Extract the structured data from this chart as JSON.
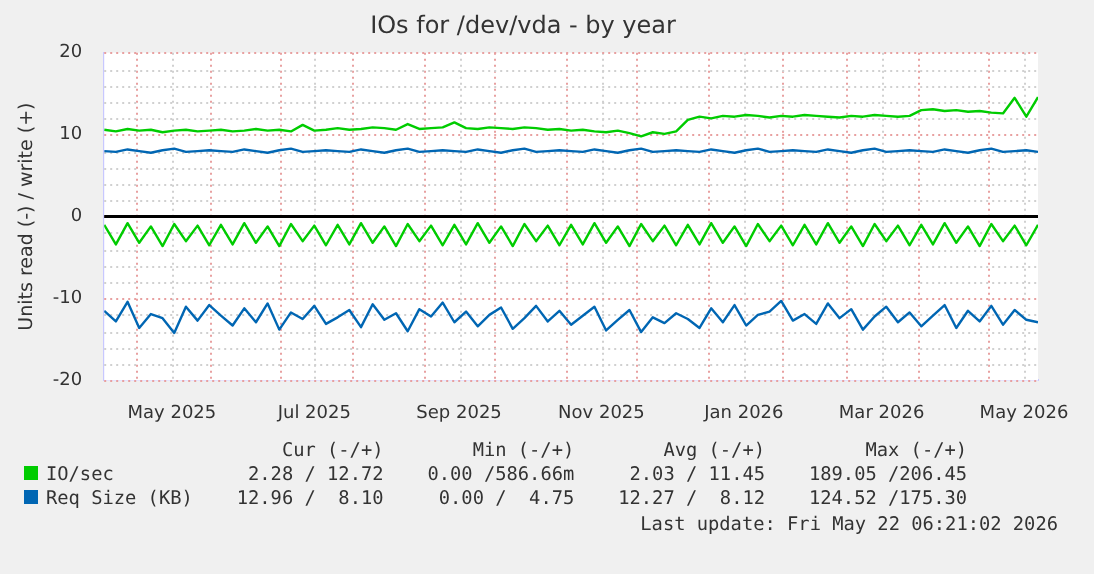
{
  "chart_data": {
    "type": "line",
    "title": "IOs for /dev/vda - by year",
    "ylabel": "Units read (-) / write (+)",
    "x": [
      "2025-04-17",
      "2025-04-22",
      "2025-04-27",
      "2025-05-02",
      "2025-05-07",
      "2025-05-12",
      "2025-05-17",
      "2025-05-22",
      "2025-05-27",
      "2025-06-01",
      "2025-06-06",
      "2025-06-11",
      "2025-06-16",
      "2025-06-21",
      "2025-06-26",
      "2025-07-01",
      "2025-07-06",
      "2025-07-11",
      "2025-07-16",
      "2025-07-21",
      "2025-07-26",
      "2025-07-31",
      "2025-08-05",
      "2025-08-10",
      "2025-08-15",
      "2025-08-20",
      "2025-08-25",
      "2025-08-30",
      "2025-09-04",
      "2025-09-09",
      "2025-09-14",
      "2025-09-19",
      "2025-09-24",
      "2025-09-29",
      "2025-10-04",
      "2025-10-09",
      "2025-10-14",
      "2025-10-19",
      "2025-10-24",
      "2025-10-29",
      "2025-11-03",
      "2025-11-08",
      "2025-11-13",
      "2025-11-18",
      "2025-11-23",
      "2025-11-28",
      "2025-12-03",
      "2025-12-08",
      "2025-12-13",
      "2025-12-18",
      "2025-12-23",
      "2025-12-28",
      "2026-01-02",
      "2026-01-07",
      "2026-01-12",
      "2026-01-17",
      "2026-01-22",
      "2026-01-27",
      "2026-02-01",
      "2026-02-06",
      "2026-02-11",
      "2026-02-16",
      "2026-02-21",
      "2026-02-26",
      "2026-03-03",
      "2026-03-08",
      "2026-03-13",
      "2026-03-18",
      "2026-03-23",
      "2026-03-28",
      "2026-04-02",
      "2026-04-07",
      "2026-04-12",
      "2026-04-17",
      "2026-04-22",
      "2026-04-27",
      "2026-05-02",
      "2026-05-07",
      "2026-05-12",
      "2026-05-17",
      "2026-05-22"
    ],
    "series": [
      {
        "name": "IO/sec",
        "color": "#00cc00",
        "values": [
          10.6,
          10.4,
          10.7,
          10.5,
          10.6,
          10.3,
          10.5,
          10.6,
          10.4,
          10.5,
          10.6,
          10.4,
          10.5,
          10.7,
          10.5,
          10.6,
          10.4,
          11.2,
          10.5,
          10.6,
          10.8,
          10.6,
          10.7,
          10.9,
          10.8,
          10.6,
          11.3,
          10.7,
          10.8,
          10.9,
          11.5,
          10.8,
          10.7,
          10.9,
          10.8,
          10.7,
          10.9,
          10.8,
          10.6,
          10.7,
          10.5,
          10.6,
          10.4,
          10.3,
          10.5,
          10.2,
          9.8,
          10.3,
          10.1,
          10.4,
          11.8,
          12.2,
          12.0,
          12.3,
          12.2,
          12.4,
          12.3,
          12.1,
          12.3,
          12.2,
          12.4,
          12.3,
          12.2,
          12.1,
          12.3,
          12.2,
          12.4,
          12.3,
          12.2,
          12.3,
          13.0,
          13.1,
          12.9,
          13.0,
          12.8,
          12.9,
          12.7,
          12.6,
          14.5,
          12.2,
          14.6
        ]
      },
      {
        "color": "#00cc00",
        "values": [
          -1.0,
          -3.4,
          -0.8,
          -3.2,
          -1.2,
          -3.6,
          -0.9,
          -3.0,
          -1.1,
          -3.5,
          -1.0,
          -3.4,
          -0.8,
          -3.2,
          -1.2,
          -3.6,
          -0.9,
          -3.0,
          -1.1,
          -3.5,
          -1.0,
          -3.4,
          -0.8,
          -3.2,
          -1.2,
          -3.6,
          -0.9,
          -3.0,
          -1.1,
          -3.5,
          -1.0,
          -3.4,
          -0.8,
          -3.2,
          -1.2,
          -3.6,
          -0.9,
          -3.0,
          -1.1,
          -3.5,
          -1.0,
          -3.4,
          -0.8,
          -3.2,
          -1.2,
          -3.6,
          -0.9,
          -3.0,
          -1.1,
          -3.5,
          -1.0,
          -3.4,
          -0.8,
          -3.2,
          -1.2,
          -3.6,
          -0.9,
          -3.0,
          -1.1,
          -3.5,
          -1.0,
          -3.4,
          -0.8,
          -3.2,
          -1.2,
          -3.6,
          -0.9,
          -3.0,
          -1.1,
          -3.5,
          -1.0,
          -3.4,
          -0.8,
          -3.2,
          -1.2,
          -3.6,
          -0.9,
          -3.0,
          -1.1,
          -3.5,
          -1.0
        ]
      },
      {
        "name": "Req Size (KB)",
        "color": "#0066b3",
        "values": [
          8.0,
          7.9,
          8.2,
          8.0,
          7.8,
          8.1,
          8.3,
          7.9,
          8.0,
          8.1,
          8.0,
          7.9,
          8.2,
          8.0,
          7.8,
          8.1,
          8.3,
          7.9,
          8.0,
          8.1,
          8.0,
          7.9,
          8.2,
          8.0,
          7.8,
          8.1,
          8.3,
          7.9,
          8.0,
          8.1,
          8.0,
          7.9,
          8.2,
          8.0,
          7.8,
          8.1,
          8.3,
          7.9,
          8.0,
          8.1,
          8.0,
          7.9,
          8.2,
          8.0,
          7.8,
          8.1,
          8.3,
          7.9,
          8.0,
          8.1,
          8.0,
          7.9,
          8.2,
          8.0,
          7.8,
          8.1,
          8.3,
          7.9,
          8.0,
          8.1,
          8.0,
          7.9,
          8.2,
          8.0,
          7.8,
          8.1,
          8.3,
          7.9,
          8.0,
          8.1,
          8.0,
          7.9,
          8.2,
          8.0,
          7.8,
          8.1,
          8.3,
          7.9,
          8.0,
          8.1,
          7.9
        ]
      },
      {
        "color": "#0066b3",
        "values": [
          -11.5,
          -12.8,
          -10.4,
          -13.6,
          -11.9,
          -12.4,
          -14.2,
          -11.0,
          -12.7,
          -10.8,
          -12.1,
          -13.3,
          -11.2,
          -12.9,
          -10.6,
          -13.8,
          -11.7,
          -12.5,
          -10.9,
          -13.1,
          -12.3,
          -11.4,
          -13.5,
          -10.7,
          -12.6,
          -11.8,
          -14.0,
          -11.3,
          -12.2,
          -10.5,
          -12.9,
          -11.6,
          -13.4,
          -12.0,
          -11.1,
          -13.7,
          -12.4,
          -10.9,
          -12.8,
          -11.5,
          -13.2,
          -12.1,
          -11.0,
          -13.9,
          -12.6,
          -11.4,
          -14.1,
          -12.3,
          -13.0,
          -11.8,
          -12.5,
          -13.6,
          -11.2,
          -12.9,
          -10.8,
          -13.3,
          -12.0,
          -11.6,
          -10.3,
          -12.7,
          -11.9,
          -13.1,
          -10.6,
          -12.4,
          -11.3,
          -13.8,
          -12.2,
          -11.0,
          -12.9,
          -11.7,
          -13.4,
          -12.1,
          -10.8,
          -13.6,
          -11.5,
          -12.8,
          -10.9,
          -13.2,
          -11.4,
          -12.6,
          -12.9
        ]
      }
    ],
    "xlim": [
      "2025-04-17",
      "2026-05-22"
    ],
    "xticks": [
      {
        "value": "2025-05-01",
        "label": null
      },
      {
        "value": "2025-05-16",
        "label": "May 2025"
      },
      {
        "value": "2025-06-01",
        "label": null
      },
      {
        "value": "2025-07-01",
        "label": null
      },
      {
        "value": "2025-07-16",
        "label": "Jul 2025"
      },
      {
        "value": "2025-08-01",
        "label": null
      },
      {
        "value": "2025-09-01",
        "label": null
      },
      {
        "value": "2025-09-16",
        "label": "Sep 2025"
      },
      {
        "value": "2025-10-01",
        "label": null
      },
      {
        "value": "2025-11-01",
        "label": null
      },
      {
        "value": "2025-11-16",
        "label": "Nov 2025"
      },
      {
        "value": "2025-12-01",
        "label": null
      },
      {
        "value": "2026-01-01",
        "label": null
      },
      {
        "value": "2026-01-16",
        "label": "Jan 2026"
      },
      {
        "value": "2026-02-01",
        "label": null
      },
      {
        "value": "2026-03-01",
        "label": null
      },
      {
        "value": "2026-03-16",
        "label": "Mar 2026"
      },
      {
        "value": "2026-04-01",
        "label": null
      },
      {
        "value": "2026-05-01",
        "label": null
      },
      {
        "value": "2026-05-16",
        "label": "May 2026"
      }
    ],
    "ylim": [
      -20,
      20
    ],
    "yticks": [
      -20,
      {
        "value": -18,
        "label": null
      },
      {
        "value": -16,
        "label": null
      },
      {
        "value": -14,
        "label": null
      },
      {
        "value": -12,
        "label": null
      },
      -10,
      {
        "value": -8,
        "label": null
      },
      {
        "value": -6,
        "label": null
      },
      {
        "value": -4,
        "label": null
      },
      {
        "value": -2,
        "label": null
      },
      0,
      {
        "value": 2,
        "label": null
      },
      {
        "value": 4,
        "label": null
      },
      {
        "value": 6,
        "label": null
      },
      {
        "value": 8,
        "label": null
      },
      10,
      {
        "value": 12,
        "label": null
      },
      {
        "value": 14,
        "label": null
      },
      {
        "value": 16,
        "label": null
      },
      {
        "value": 18,
        "label": null
      },
      20
    ],
    "ref_lines": [
      {
        "axis": "y",
        "value": 0,
        "color": "#000000"
      }
    ],
    "grid": true,
    "legend": "bottom",
    "marker": "none",
    "line_style": "solid",
    "annotations": [
      "Cur (-/+)",
      "Min (-/+)",
      "Avg (-/+)",
      "Max (-/+)",
      "2.28 / 12.72",
      "0.00 /586.66m",
      "2.03 / 11.45",
      "189.05 /206.45",
      "12.96 /  8.10",
      "0.00 /  4.75",
      "12.27 /  8.12",
      "124.52 /175.30",
      "Last update: Fri May 22 06:21:02 2026"
    ]
  }
}
